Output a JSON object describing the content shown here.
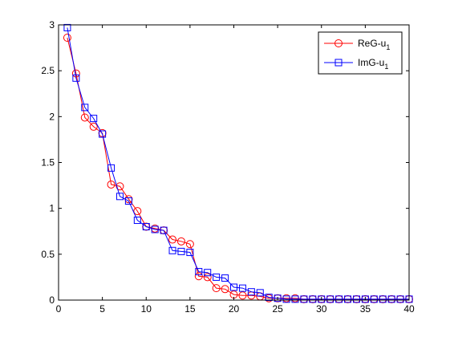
{
  "chart_data": {
    "type": "line",
    "title": "",
    "xlabel": "",
    "ylabel": "",
    "xlim": [
      0,
      40
    ],
    "ylim": [
      0,
      3
    ],
    "x_ticks": [
      0,
      5,
      10,
      15,
      20,
      25,
      30,
      35,
      40
    ],
    "y_ticks": [
      0,
      0.5,
      1,
      1.5,
      2,
      2.5,
      3
    ],
    "x_tick_labels": [
      "0",
      "5",
      "10",
      "15",
      "20",
      "25",
      "30",
      "35",
      "40"
    ],
    "y_tick_labels": [
      "0",
      "0.5",
      "1",
      "1.5",
      "2",
      "2.5",
      "3"
    ],
    "grid": false,
    "legend_position": "top-right",
    "x": [
      1,
      2,
      3,
      4,
      5,
      6,
      7,
      8,
      9,
      10,
      11,
      12,
      13,
      14,
      15,
      16,
      17,
      18,
      19,
      20,
      21,
      22,
      23,
      24,
      25,
      26,
      27,
      28,
      29,
      30,
      31,
      32,
      33,
      34,
      35,
      36,
      37,
      38,
      39,
      40
    ],
    "series": [
      {
        "name": "ReG-u",
        "name_sub": "1",
        "color": "#ff0000",
        "marker": "circle",
        "values": [
          2.86,
          2.47,
          1.99,
          1.89,
          1.82,
          1.26,
          1.24,
          1.1,
          0.97,
          0.8,
          0.78,
          0.76,
          0.66,
          0.64,
          0.61,
          0.26,
          0.25,
          0.13,
          0.12,
          0.06,
          0.05,
          0.05,
          0.04,
          0.02,
          0.02,
          0.02,
          0.02,
          0.01,
          0.01,
          0.01,
          0.01,
          0.01,
          0.01,
          0.01,
          0.01,
          0.01,
          0.01,
          0.01,
          0.01,
          0.01
        ]
      },
      {
        "name": "ImG-u",
        "name_sub": "1",
        "color": "#0000ff",
        "marker": "square",
        "values": [
          2.97,
          2.42,
          2.1,
          1.98,
          1.81,
          1.44,
          1.13,
          1.08,
          0.87,
          0.8,
          0.77,
          0.76,
          0.54,
          0.53,
          0.52,
          0.31,
          0.3,
          0.25,
          0.24,
          0.14,
          0.13,
          0.09,
          0.08,
          0.03,
          0.02,
          0.01,
          0.01,
          0.01,
          0.01,
          0.01,
          0.01,
          0.01,
          0.01,
          0.01,
          0.01,
          0.01,
          0.01,
          0.01,
          0.01,
          0.01
        ]
      }
    ]
  }
}
